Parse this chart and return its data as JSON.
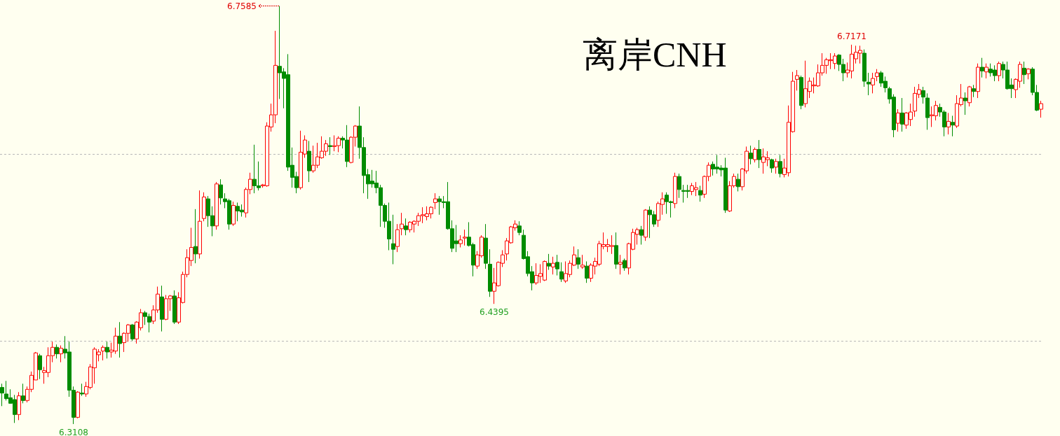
{
  "chart_data": {
    "type": "candlestick",
    "title": "离岸CNH",
    "categories": [
      null,
      null,
      null,
      null,
      null,
      null,
      null,
      null,
      null,
      null,
      null,
      null,
      null,
      null,
      null,
      null,
      null,
      null,
      null,
      null,
      null,
      null,
      null,
      null,
      null,
      null,
      null,
      null,
      null,
      null,
      null,
      null,
      null,
      null,
      null,
      null,
      null,
      null,
      null,
      null,
      null,
      null,
      null,
      null,
      null,
      null,
      null,
      null,
      null,
      null,
      null,
      null,
      null,
      null,
      null,
      null,
      null,
      null,
      null,
      null,
      null,
      null,
      null,
      null,
      null,
      null,
      null,
      null,
      null,
      null,
      null,
      null,
      null,
      null,
      null,
      null,
      null,
      null,
      null,
      null,
      null,
      null,
      null,
      null,
      null,
      null,
      null,
      null,
      null,
      null,
      null,
      null,
      null,
      null,
      null,
      null,
      null,
      null,
      null,
      null,
      null,
      null,
      null,
      null,
      null,
      null,
      null,
      null,
      null,
      null,
      null,
      null,
      null,
      null,
      null,
      null,
      null,
      null,
      null,
      null,
      null,
      null,
      null,
      null,
      null,
      null,
      null,
      null,
      null,
      null,
      null,
      null,
      null,
      null,
      null,
      null,
      null,
      null,
      null,
      null,
      null,
      null,
      null,
      null,
      null,
      null,
      null,
      null,
      null,
      null,
      null,
      null,
      null,
      null,
      null,
      null,
      null,
      null,
      null,
      null,
      null,
      null,
      null,
      null,
      null,
      null,
      null,
      null,
      null,
      null,
      null,
      null,
      null,
      null,
      null,
      null,
      null,
      null,
      null,
      null,
      null,
      null,
      null,
      null,
      null,
      null,
      null,
      null,
      null,
      null,
      null,
      null,
      null,
      null,
      null,
      null,
      null,
      null,
      null,
      null,
      null,
      null,
      null,
      null,
      null,
      null,
      null,
      null,
      null,
      null,
      null,
      null,
      null,
      null,
      null,
      null,
      null,
      null,
      null,
      null,
      null,
      null,
      null,
      null,
      null,
      null,
      null,
      null,
      null,
      null,
      null,
      null,
      null,
      null,
      null,
      null,
      null,
      null,
      null,
      null,
      null,
      null,
      null,
      null,
      null,
      null,
      null,
      null
    ],
    "ohlc": [
      [
        6.35,
        6.354,
        6.33,
        6.344
      ],
      [
        6.343,
        6.357,
        6.336,
        6.338
      ],
      [
        6.339,
        6.348,
        6.333,
        6.333
      ],
      [
        6.337,
        6.342,
        6.312,
        6.321
      ],
      [
        6.321,
        6.345,
        6.315,
        6.341
      ],
      [
        6.341,
        6.354,
        6.333,
        6.336
      ],
      [
        6.336,
        6.351,
        6.334,
        6.348
      ],
      [
        6.348,
        6.367,
        6.345,
        6.363
      ],
      [
        6.358,
        6.388,
        6.358,
        6.387
      ],
      [
        6.384,
        6.386,
        6.359,
        6.369
      ],
      [
        6.366,
        6.372,
        6.354,
        6.368
      ],
      [
        6.366,
        6.393,
        6.361,
        6.384
      ],
      [
        6.384,
        6.399,
        6.377,
        6.393
      ],
      [
        6.393,
        6.396,
        6.381,
        6.386
      ],
      [
        6.386,
        6.395,
        6.377,
        6.392
      ],
      [
        6.391,
        6.405,
        6.381,
        6.387
      ],
      [
        6.388,
        6.399,
        6.34,
        6.347
      ],
      [
        6.347,
        6.351,
        6.3108,
        6.318
      ],
      [
        6.318,
        6.346,
        6.317,
        6.345
      ],
      [
        6.344,
        6.354,
        6.341,
        6.343
      ],
      [
        6.343,
        6.356,
        6.34,
        6.351
      ],
      [
        6.35,
        6.375,
        6.348,
        6.372
      ],
      [
        6.371,
        6.393,
        6.354,
        6.391
      ],
      [
        6.385,
        6.391,
        6.378,
        6.388
      ],
      [
        6.389,
        6.395,
        6.379,
        6.393
      ],
      [
        6.393,
        6.399,
        6.381,
        6.388
      ],
      [
        6.388,
        6.398,
        6.382,
        6.39
      ],
      [
        6.389,
        6.414,
        6.386,
        6.405
      ],
      [
        6.405,
        6.42,
        6.382,
        6.397
      ],
      [
        6.398,
        6.409,
        6.388,
        6.408
      ],
      [
        6.408,
        6.418,
        6.399,
        6.417
      ],
      [
        6.417,
        6.418,
        6.4,
        6.402
      ],
      [
        6.402,
        6.421,
        6.397,
        6.42
      ],
      [
        6.414,
        6.434,
        6.411,
        6.43
      ],
      [
        6.43,
        6.432,
        6.417,
        6.426
      ],
      [
        6.426,
        6.429,
        6.409,
        6.42
      ],
      [
        6.421,
        6.438,
        6.418,
        6.433
      ],
      [
        6.433,
        6.458,
        6.43,
        6.45
      ],
      [
        6.447,
        6.459,
        6.41,
        6.423
      ],
      [
        6.423,
        6.449,
        6.422,
        6.445
      ],
      [
        6.445,
        6.449,
        6.432,
        6.448
      ],
      [
        6.448,
        6.454,
        6.418,
        6.42
      ],
      [
        6.42,
        6.452,
        6.418,
        6.446
      ],
      [
        6.441,
        6.474,
        6.44,
        6.471
      ],
      [
        6.471,
        6.498,
        6.468,
        6.489
      ],
      [
        6.486,
        6.521,
        6.48,
        6.5
      ],
      [
        6.501,
        6.541,
        6.483,
        6.493
      ],
      [
        6.493,
        6.561,
        6.488,
        6.528
      ],
      [
        6.531,
        6.559,
        6.528,
        6.554
      ],
      [
        6.552,
        6.555,
        6.522,
        6.534
      ],
      [
        6.534,
        6.544,
        6.512,
        6.523
      ],
      [
        6.523,
        6.57,
        6.519,
        6.568
      ],
      [
        6.567,
        6.573,
        6.546,
        6.553
      ],
      [
        6.552,
        6.558,
        6.542,
        6.549
      ],
      [
        6.55,
        6.552,
        6.519,
        6.525
      ],
      [
        6.525,
        6.549,
        6.523,
        6.545
      ],
      [
        6.544,
        6.548,
        6.528,
        6.539
      ],
      [
        6.54,
        6.546,
        6.533,
        6.538
      ],
      [
        6.537,
        6.564,
        6.532,
        6.562
      ],
      [
        6.562,
        6.58,
        6.557,
        6.573
      ],
      [
        6.573,
        6.61,
        6.558,
        6.566
      ],
      [
        6.566,
        6.592,
        6.561,
        6.564
      ],
      [
        6.566,
        6.568,
        6.564,
        6.567
      ],
      [
        6.566,
        6.634,
        6.565,
        6.63
      ],
      [
        6.629,
        6.654,
        6.624,
        6.642
      ],
      [
        6.642,
        6.732,
        6.633,
        6.695
      ],
      [
        6.694,
        6.7585,
        6.659,
        6.687
      ],
      [
        6.688,
        6.692,
        6.649,
        6.681
      ],
      [
        6.685,
        6.707,
        6.582,
        6.586
      ],
      [
        6.588,
        6.607,
        6.564,
        6.575
      ],
      [
        6.576,
        6.581,
        6.558,
        6.564
      ],
      [
        6.564,
        6.625,
        6.562,
        6.602
      ],
      [
        6.6,
        6.62,
        6.596,
        6.615
      ],
      [
        6.603,
        6.614,
        6.57,
        6.582
      ],
      [
        6.582,
        6.609,
        6.58,
        6.588
      ],
      [
        6.588,
        6.612,
        6.585,
        6.597
      ],
      [
        6.596,
        6.619,
        6.595,
        6.603
      ],
      [
        6.603,
        6.615,
        6.598,
        6.611
      ],
      [
        6.609,
        6.618,
        6.599,
        6.608
      ],
      [
        6.608,
        6.62,
        6.603,
        6.609
      ],
      [
        6.609,
        6.619,
        6.602,
        6.617
      ],
      [
        6.617,
        6.619,
        6.606,
        6.615
      ],
      [
        6.615,
        6.631,
        6.586,
        6.592
      ],
      [
        6.591,
        6.619,
        6.59,
        6.618
      ],
      [
        6.618,
        6.631,
        6.608,
        6.63
      ],
      [
        6.63,
        6.651,
        6.595,
        6.607
      ],
      [
        6.607,
        6.618,
        6.558,
        6.577
      ],
      [
        6.578,
        6.584,
        6.552,
        6.568
      ],
      [
        6.571,
        6.583,
        6.564,
        6.568
      ],
      [
        6.569,
        6.582,
        6.558,
        6.564
      ],
      [
        6.564,
        6.567,
        6.522,
        6.545
      ],
      [
        6.545,
        6.547,
        6.521,
        6.528
      ],
      [
        6.528,
        6.548,
        6.497,
        6.509
      ],
      [
        6.504,
        6.535,
        6.482,
        6.498
      ],
      [
        6.501,
        6.525,
        6.495,
        6.519
      ],
      [
        6.52,
        6.537,
        6.513,
        6.525
      ],
      [
        6.523,
        6.531,
        6.513,
        6.519
      ],
      [
        6.519,
        6.528,
        6.516,
        6.527
      ],
      [
        6.525,
        6.529,
        6.516,
        6.528
      ],
      [
        6.528,
        6.537,
        6.523,
        6.534
      ],
      [
        6.534,
        6.543,
        6.526,
        6.535
      ],
      [
        6.533,
        6.544,
        6.529,
        6.536
      ],
      [
        6.536,
        6.544,
        6.531,
        6.543
      ],
      [
        6.548,
        6.558,
        6.541,
        6.552
      ],
      [
        6.552,
        6.555,
        6.535,
        6.549
      ],
      [
        6.549,
        6.555,
        6.542,
        6.548
      ],
      [
        6.549,
        6.57,
        6.519,
        6.52
      ],
      [
        6.52,
        6.529,
        6.495,
        6.499
      ],
      [
        6.507,
        6.524,
        6.495,
        6.504
      ],
      [
        6.504,
        6.513,
        6.5,
        6.508
      ],
      [
        6.51,
        6.519,
        6.502,
        6.511
      ],
      [
        6.511,
        6.527,
        6.501,
        6.502
      ],
      [
        6.503,
        6.505,
        6.469,
        6.481
      ],
      [
        6.48,
        6.496,
        6.477,
        6.492
      ],
      [
        6.491,
        6.513,
        6.489,
        6.511
      ],
      [
        6.51,
        6.525,
        6.477,
        6.483
      ],
      [
        6.482,
        6.498,
        6.447,
        6.453
      ],
      [
        6.453,
        6.478,
        6.4395,
        6.462
      ],
      [
        6.459,
        6.485,
        6.458,
        6.484
      ],
      [
        6.483,
        6.497,
        6.479,
        6.492
      ],
      [
        6.493,
        6.51,
        6.486,
        6.507
      ],
      [
        6.505,
        6.523,
        6.504,
        6.522
      ],
      [
        6.521,
        6.529,
        6.518,
        6.525
      ],
      [
        6.523,
        6.528,
        6.513,
        6.516
      ],
      [
        6.513,
        6.519,
        6.487,
        6.488
      ],
      [
        6.49,
        6.496,
        6.469,
        6.472
      ],
      [
        6.474,
        6.48,
        6.454,
        6.462
      ],
      [
        6.462,
        6.483,
        6.46,
        6.47
      ],
      [
        6.469,
        6.482,
        6.462,
        6.472
      ],
      [
        6.465,
        6.486,
        6.464,
        6.485
      ],
      [
        6.483,
        6.493,
        6.476,
        6.48
      ],
      [
        6.479,
        6.49,
        6.471,
        6.483
      ],
      [
        6.484,
        6.492,
        6.47,
        6.477
      ],
      [
        6.474,
        6.484,
        6.463,
        6.466
      ],
      [
        6.464,
        6.485,
        6.462,
        6.472
      ],
      [
        6.471,
        6.486,
        6.468,
        6.483
      ],
      [
        6.481,
        6.501,
        6.48,
        6.492
      ],
      [
        6.489,
        6.498,
        6.477,
        6.482
      ],
      [
        6.479,
        6.492,
        6.477,
        6.481
      ],
      [
        6.48,
        6.485,
        6.462,
        6.467
      ],
      [
        6.467,
        6.483,
        6.463,
        6.481
      ],
      [
        6.48,
        6.489,
        6.471,
        6.485
      ],
      [
        6.482,
        6.507,
        6.48,
        6.504
      ],
      [
        6.501,
        6.516,
        6.498,
        6.503
      ],
      [
        6.501,
        6.509,
        6.495,
        6.503
      ],
      [
        6.501,
        6.513,
        6.493,
        6.502
      ],
      [
        6.502,
        6.516,
        6.477,
        6.482
      ],
      [
        6.482,
        6.492,
        6.471,
        6.484
      ],
      [
        6.486,
        6.488,
        6.475,
        6.478
      ],
      [
        6.478,
        6.505,
        6.471,
        6.504
      ],
      [
        6.498,
        6.52,
        6.497,
        6.516
      ],
      [
        6.514,
        6.521,
        6.503,
        6.519
      ],
      [
        6.519,
        6.523,
        6.503,
        6.513
      ],
      [
        6.511,
        6.541,
        6.507,
        6.54
      ],
      [
        6.54,
        6.544,
        6.51,
        6.535
      ],
      [
        6.535,
        6.539,
        6.522,
        6.525
      ],
      [
        6.529,
        6.549,
        6.522,
        6.547
      ],
      [
        6.546,
        6.559,
        6.535,
        6.552
      ],
      [
        6.556,
        6.559,
        6.536,
        6.549
      ],
      [
        6.549,
        6.55,
        6.532,
        6.548
      ],
      [
        6.547,
        6.58,
        6.542,
        6.576
      ],
      [
        6.576,
        6.579,
        6.553,
        6.562
      ],
      [
        6.561,
        6.567,
        6.548,
        6.56
      ],
      [
        6.561,
        6.567,
        6.553,
        6.56
      ],
      [
        6.56,
        6.569,
        6.556,
        6.566
      ],
      [
        6.562,
        6.57,
        6.555,
        6.564
      ],
      [
        6.561,
        6.566,
        6.549,
        6.556
      ],
      [
        6.557,
        6.577,
        6.553,
        6.576
      ],
      [
        6.576,
        6.591,
        6.571,
        6.588
      ],
      [
        6.589,
        6.592,
        6.577,
        6.584
      ],
      [
        6.586,
        6.599,
        6.579,
        6.584
      ],
      [
        6.585,
        6.588,
        6.576,
        6.583
      ],
      [
        6.585,
        6.596,
        6.537,
        6.54
      ],
      [
        6.539,
        6.571,
        6.538,
        6.566
      ],
      [
        6.566,
        6.579,
        6.564,
        6.576
      ],
      [
        6.573,
        6.579,
        6.56,
        6.565
      ],
      [
        6.565,
        6.585,
        6.561,
        6.584
      ],
      [
        6.582,
        6.608,
        6.579,
        6.603
      ],
      [
        6.601,
        6.609,
        6.589,
        6.595
      ],
      [
        6.594,
        6.607,
        6.591,
        6.605
      ],
      [
        6.605,
        6.615,
        6.585,
        6.594
      ],
      [
        6.591,
        6.606,
        6.579,
        6.597
      ],
      [
        6.594,
        6.603,
        6.587,
        6.596
      ],
      [
        6.594,
        6.595,
        6.58,
        6.585
      ],
      [
        6.586,
        6.595,
        6.579,
        6.592
      ],
      [
        6.592,
        6.599,
        6.575,
        6.579
      ],
      [
        6.578,
        6.595,
        6.575,
        6.585
      ],
      [
        6.58,
        6.652,
        6.576,
        6.634
      ],
      [
        6.624,
        6.688,
        6.623,
        6.678
      ],
      [
        6.68,
        6.69,
        6.668,
        6.684
      ],
      [
        6.682,
        6.684,
        6.648,
        6.652
      ],
      [
        6.654,
        6.7,
        6.65,
        6.67
      ],
      [
        6.667,
        6.682,
        6.66,
        6.678
      ],
      [
        6.673,
        6.682,
        6.665,
        6.674
      ],
      [
        6.673,
        6.696,
        6.672,
        6.687
      ],
      [
        6.687,
        6.708,
        6.684,
        6.695
      ],
      [
        6.695,
        6.703,
        6.686,
        6.701
      ],
      [
        6.7,
        6.708,
        6.691,
        6.701
      ],
      [
        6.697,
        6.708,
        6.691,
        6.705
      ],
      [
        6.706,
        6.707,
        6.689,
        6.696
      ],
      [
        6.696,
        6.702,
        6.678,
        6.687
      ],
      [
        6.687,
        6.698,
        6.682,
        6.69
      ],
      [
        6.689,
        6.7171,
        6.681,
        6.707
      ],
      [
        6.702,
        6.716,
        6.697,
        6.709
      ],
      [
        6.708,
        6.716,
        6.697,
        6.711
      ],
      [
        6.708,
        6.712,
        6.672,
        6.678
      ],
      [
        6.677,
        6.687,
        6.663,
        6.675
      ],
      [
        6.674,
        6.687,
        6.665,
        6.681
      ],
      [
        6.683,
        6.691,
        6.678,
        6.687
      ],
      [
        6.687,
        6.689,
        6.672,
        6.676
      ],
      [
        6.678,
        6.683,
        6.666,
        6.671
      ],
      [
        6.67,
        6.672,
        6.654,
        6.659
      ],
      [
        6.661,
        6.664,
        6.618,
        6.626
      ],
      [
        6.633,
        6.648,
        6.624,
        6.644
      ],
      [
        6.644,
        6.66,
        6.624,
        6.632
      ],
      [
        6.631,
        6.645,
        6.627,
        6.644
      ],
      [
        6.637,
        6.654,
        6.63,
        6.645
      ],
      [
        6.646,
        6.672,
        6.64,
        6.665
      ],
      [
        6.664,
        6.675,
        6.66,
        6.669
      ],
      [
        6.668,
        6.672,
        6.654,
        6.661
      ],
      [
        6.66,
        6.665,
        6.626,
        6.639
      ],
      [
        6.641,
        6.651,
        6.629,
        6.642
      ],
      [
        6.641,
        6.657,
        6.636,
        6.652
      ],
      [
        6.65,
        6.654,
        6.64,
        6.645
      ],
      [
        6.645,
        6.647,
        6.619,
        6.629
      ],
      [
        6.629,
        6.644,
        6.621,
        6.635
      ],
      [
        6.634,
        6.641,
        6.619,
        6.631
      ],
      [
        6.63,
        6.663,
        6.628,
        6.654
      ],
      [
        6.653,
        6.675,
        6.651,
        6.66
      ],
      [
        6.66,
        6.666,
        6.642,
        6.657
      ],
      [
        6.655,
        6.673,
        6.651,
        6.672
      ],
      [
        6.67,
        6.674,
        6.661,
        6.667
      ],
      [
        6.667,
        6.697,
        6.66,
        6.693
      ],
      [
        6.693,
        6.703,
        6.682,
        6.689
      ],
      [
        6.688,
        6.697,
        6.681,
        6.693
      ],
      [
        6.691,
        6.697,
        6.683,
        6.687
      ],
      [
        6.69,
        6.695,
        6.678,
        6.684
      ],
      [
        6.684,
        6.699,
        6.678,
        6.697
      ],
      [
        6.696,
        6.699,
        6.681,
        6.69
      ],
      [
        6.69,
        6.699,
        6.669,
        6.67
      ],
      [
        6.674,
        6.681,
        6.66,
        6.67
      ],
      [
        6.669,
        6.681,
        6.66,
        6.68
      ],
      [
        6.678,
        6.699,
        6.671,
        6.696
      ],
      [
        6.692,
        6.699,
        6.675,
        6.685
      ],
      [
        6.686,
        6.692,
        6.68,
        6.691
      ],
      [
        6.691,
        6.693,
        6.663,
        6.666
      ],
      [
        6.666,
        6.674,
        6.646,
        6.647
      ],
      [
        6.648,
        6.657,
        6.639,
        6.654
      ]
    ],
    "yticks": [
      {
        "value": 6.4,
        "label": null
      },
      {
        "value": 6.6,
        "label": null
      }
    ],
    "grid": "y",
    "tick_labels": false,
    "annotations": [
      "6.7585",
      {
        "text": "6.7171",
        "y": 6.7171
      },
      {
        "text": "6.4395",
        "y": 6.4395
      },
      {
        "text": "6.3108",
        "y": 6.3108
      }
    ]
  }
}
